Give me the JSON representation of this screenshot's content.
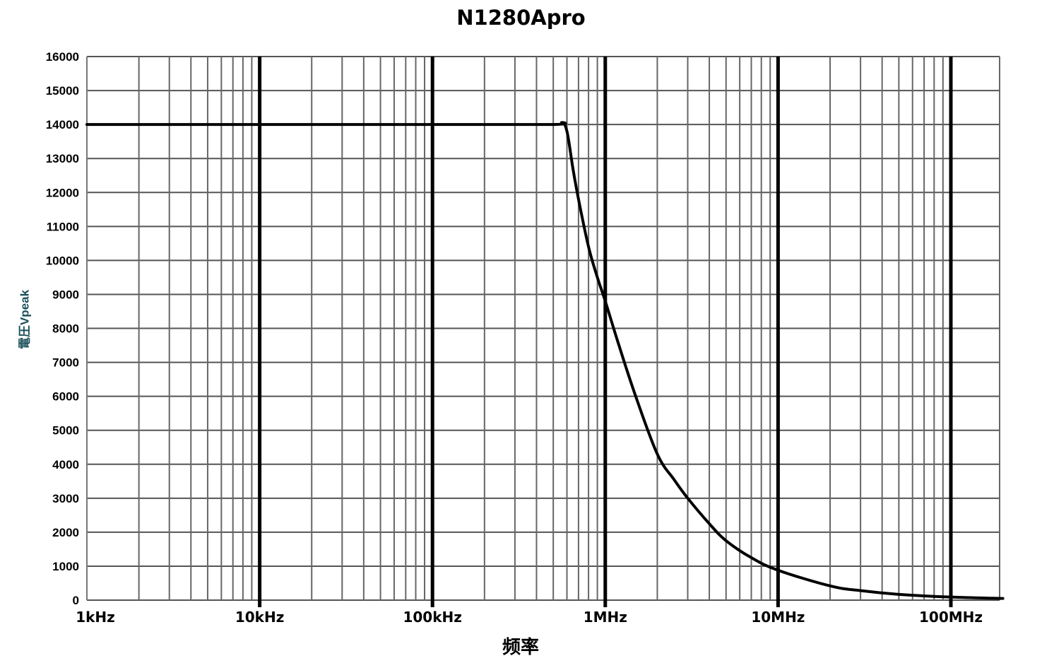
{
  "chart_data": {
    "type": "line",
    "title": "N1280Apro",
    "xlabel": "频率",
    "ylabel": "電圧Vpeak",
    "x_scale": "log",
    "x_unit": "Hz",
    "xlim": [
      1000,
      200000000
    ],
    "ylim": [
      0,
      16000
    ],
    "x_tick_labels": [
      "1kHz",
      "10kHz",
      "100kHz",
      "1MHz",
      "10MHz",
      "100MHz"
    ],
    "x_tick_values": [
      1000,
      10000,
      100000,
      1000000,
      10000000,
      100000000
    ],
    "y_tick_values": [
      0,
      1000,
      2000,
      3000,
      4000,
      5000,
      6000,
      7000,
      8000,
      9000,
      10000,
      11000,
      12000,
      13000,
      14000,
      15000,
      16000
    ],
    "grid": true,
    "legend": null,
    "series": [
      {
        "name": "N1280Apro",
        "color": "#000000",
        "x": [
          1000,
          10000,
          100000,
          500000,
          560000,
          600000,
          650000,
          700000,
          800000,
          900000,
          1000000,
          1200000,
          1500000,
          2000000,
          2500000,
          3000000,
          4000000,
          5000000,
          7000000,
          10000000,
          20000000,
          30000000,
          50000000,
          100000000,
          200000000
        ],
        "y": [
          14000,
          14000,
          14000,
          14000,
          14050,
          13800,
          12700,
          11800,
          10400,
          9500,
          8800,
          7500,
          6000,
          4300,
          3550,
          3000,
          2250,
          1750,
          1250,
          880,
          420,
          280,
          170,
          90,
          50
        ]
      }
    ]
  }
}
